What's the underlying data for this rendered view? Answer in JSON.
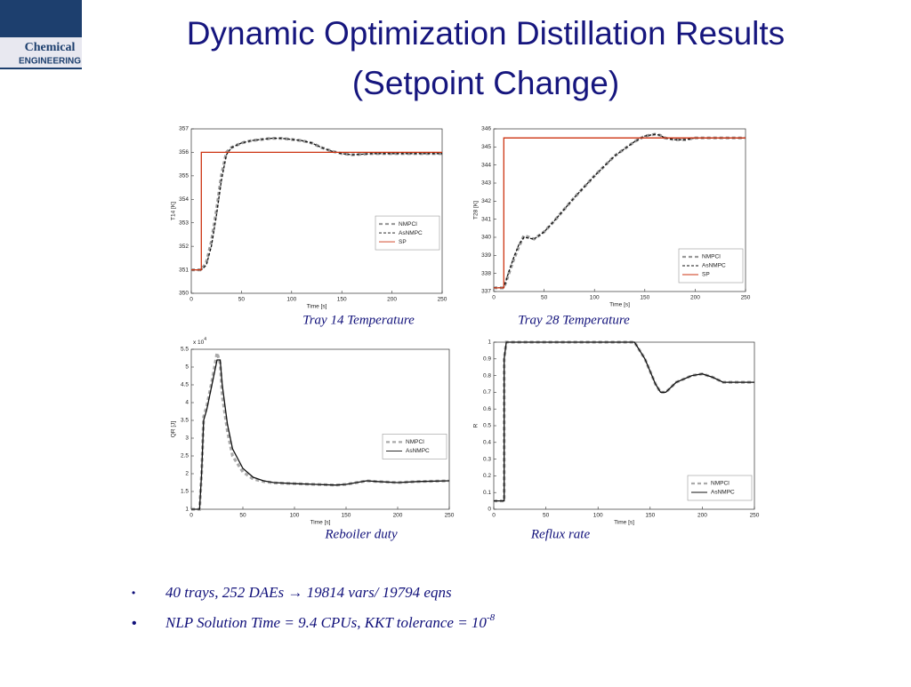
{
  "title_line1": "Dynamic Optimization Distillation Results",
  "title_line2": "(Setpoint Change)",
  "logo": {
    "line1": "Chemical",
    "line2": "ENGINEERING"
  },
  "bullets": [
    {
      "text": "40 trays, 252 DAEs → 19814 vars/ 19794 eqns"
    },
    {
      "text": "NLP Solution Time = 9.4 CPUs, KKT tolerance = 10",
      "sup": "-8"
    }
  ],
  "chart_data": [
    {
      "type": "line",
      "caption": "Tray 14 Temperature",
      "xlabel": "Time [s]",
      "ylabel": "T14 [K]",
      "xlim": [
        0,
        250
      ],
      "ylim": [
        350,
        357
      ],
      "xticks": [
        0,
        50,
        100,
        150,
        200,
        250
      ],
      "yticks": [
        350,
        351,
        352,
        353,
        354,
        355,
        356,
        357
      ],
      "legend": "right",
      "series": [
        {
          "name": "NMPCI",
          "color": "#999999",
          "style": "thick-dashed",
          "x": [
            0,
            10,
            15,
            20,
            25,
            30,
            35,
            40,
            50,
            60,
            70,
            80,
            90,
            100,
            110,
            120,
            130,
            140,
            150,
            160,
            170,
            180,
            190,
            200,
            250
          ],
          "values": [
            351,
            351,
            351.3,
            352.2,
            353.5,
            355,
            356,
            356.2,
            356.4,
            356.5,
            356.55,
            356.6,
            356.6,
            356.55,
            356.5,
            356.4,
            356.2,
            356.05,
            355.95,
            355.9,
            355.92,
            355.95,
            355.95,
            355.95,
            355.95
          ]
        },
        {
          "name": "AsNMPC",
          "color": "#111111",
          "style": "dashed",
          "x": [
            0,
            10,
            15,
            20,
            25,
            30,
            35,
            40,
            50,
            60,
            70,
            80,
            90,
            100,
            110,
            120,
            130,
            140,
            150,
            160,
            170,
            180,
            190,
            200,
            250
          ],
          "values": [
            351,
            351,
            351.2,
            352,
            353.3,
            354.8,
            355.9,
            356.2,
            356.4,
            356.5,
            356.55,
            356.6,
            356.6,
            356.55,
            356.5,
            356.4,
            356.2,
            356.05,
            355.95,
            355.9,
            355.92,
            355.95,
            355.95,
            355.95,
            355.95
          ]
        },
        {
          "name": "SP",
          "color": "#cc3311",
          "style": "solid",
          "x": [
            0,
            10,
            10,
            250
          ],
          "values": [
            351,
            351,
            356,
            356
          ]
        }
      ]
    },
    {
      "type": "line",
      "caption": "Tray 28 Temperature",
      "xlabel": "Time [s]",
      "ylabel": "T28 [K]",
      "xlim": [
        0,
        250
      ],
      "ylim": [
        337,
        346
      ],
      "xticks": [
        0,
        50,
        100,
        150,
        200,
        250
      ],
      "yticks": [
        337,
        338,
        339,
        340,
        341,
        342,
        343,
        344,
        345,
        346
      ],
      "legend": "lower right",
      "series": [
        {
          "name": "NMPCI",
          "color": "#999999",
          "style": "thick-dashed",
          "x": [
            0,
            10,
            15,
            20,
            25,
            30,
            40,
            50,
            60,
            80,
            100,
            120,
            140,
            150,
            160,
            165,
            170,
            180,
            190,
            200,
            220,
            250
          ],
          "values": [
            337.2,
            337.2,
            338,
            338.8,
            339.5,
            340.1,
            339.9,
            340.3,
            340.9,
            342.2,
            343.4,
            344.5,
            345.3,
            345.6,
            345.7,
            345.65,
            345.5,
            345.4,
            345.4,
            345.5,
            345.5,
            345.5
          ]
        },
        {
          "name": "AsNMPC",
          "color": "#111111",
          "style": "dashed",
          "x": [
            0,
            10,
            15,
            20,
            25,
            30,
            40,
            50,
            60,
            80,
            100,
            120,
            140,
            150,
            160,
            165,
            170,
            180,
            190,
            200,
            220,
            250
          ],
          "values": [
            337.2,
            337.2,
            338.1,
            338.9,
            339.6,
            340,
            339.9,
            340.3,
            340.9,
            342.2,
            343.4,
            344.5,
            345.3,
            345.6,
            345.7,
            345.65,
            345.5,
            345.4,
            345.4,
            345.5,
            345.5,
            345.5
          ]
        },
        {
          "name": "SP",
          "color": "#cc3311",
          "style": "solid",
          "x": [
            0,
            10,
            10,
            250
          ],
          "values": [
            337.2,
            337.2,
            345.5,
            345.5
          ]
        }
      ]
    },
    {
      "type": "line",
      "caption": "Reboiler duty",
      "xlabel": "Time [s]",
      "ylabel": "QR [J]",
      "y_multiplier": "x 10",
      "y_multiplier_exp": "4",
      "xlim": [
        0,
        250
      ],
      "ylim": [
        1,
        5.5
      ],
      "xticks": [
        0,
        50,
        100,
        150,
        200,
        250
      ],
      "yticks": [
        1,
        1.5,
        2,
        2.5,
        3,
        3.5,
        4,
        4.5,
        5,
        5.5
      ],
      "legend": "right",
      "series": [
        {
          "name": "NMPCI",
          "color": "#aaaaaa",
          "style": "thick-dashed",
          "x": [
            0,
            8,
            10,
            12,
            15,
            20,
            25,
            28,
            30,
            35,
            40,
            50,
            60,
            70,
            80,
            100,
            120,
            140,
            150,
            160,
            170,
            180,
            200,
            220,
            250
          ],
          "values": [
            1,
            1,
            2,
            3.6,
            3.9,
            4.6,
            5.4,
            5.1,
            4.2,
            3.2,
            2.5,
            2.05,
            1.85,
            1.78,
            1.74,
            1.72,
            1.7,
            1.68,
            1.7,
            1.75,
            1.8,
            1.78,
            1.75,
            1.78,
            1.8
          ]
        },
        {
          "name": "AsNMPC",
          "color": "#111111",
          "style": "solid",
          "x": [
            0,
            8,
            10,
            12,
            15,
            20,
            25,
            28,
            30,
            35,
            40,
            50,
            60,
            70,
            80,
            100,
            120,
            140,
            150,
            160,
            170,
            180,
            200,
            220,
            250
          ],
          "values": [
            1,
            1,
            2,
            3.5,
            3.8,
            4.5,
            5.2,
            5.2,
            4.5,
            3.4,
            2.7,
            2.15,
            1.9,
            1.8,
            1.75,
            1.72,
            1.7,
            1.68,
            1.7,
            1.75,
            1.8,
            1.78,
            1.75,
            1.78,
            1.8
          ]
        }
      ]
    },
    {
      "type": "line",
      "caption": "Reflux rate",
      "xlabel": "Time [s]",
      "ylabel": "R",
      "xlim": [
        0,
        250
      ],
      "ylim": [
        0,
        1
      ],
      "xticks": [
        0,
        50,
        100,
        150,
        200,
        250
      ],
      "yticks": [
        0,
        0.1,
        0.2,
        0.3,
        0.4,
        0.5,
        0.6,
        0.7,
        0.8,
        0.9,
        1
      ],
      "legend": "lower right",
      "series": [
        {
          "name": "NMPCI",
          "color": "#aaaaaa",
          "style": "thick-dashed",
          "x": [
            0,
            10,
            10,
            12,
            20,
            40,
            80,
            120,
            135,
            145,
            155,
            160,
            165,
            175,
            190,
            200,
            210,
            220,
            230,
            250
          ],
          "values": [
            0.05,
            0.05,
            0.9,
            1,
            1,
            1,
            1,
            1,
            1,
            0.9,
            0.75,
            0.7,
            0.7,
            0.76,
            0.8,
            0.81,
            0.79,
            0.76,
            0.76,
            0.76
          ]
        },
        {
          "name": "AsNMPC",
          "color": "#111111",
          "style": "solid",
          "x": [
            0,
            10,
            10,
            12,
            20,
            40,
            80,
            120,
            135,
            145,
            155,
            160,
            165,
            175,
            190,
            200,
            210,
            220,
            230,
            250
          ],
          "values": [
            0.05,
            0.05,
            0.9,
            1,
            1,
            1,
            1,
            1,
            1,
            0.9,
            0.75,
            0.7,
            0.7,
            0.76,
            0.8,
            0.81,
            0.79,
            0.76,
            0.76,
            0.76
          ]
        }
      ]
    }
  ]
}
